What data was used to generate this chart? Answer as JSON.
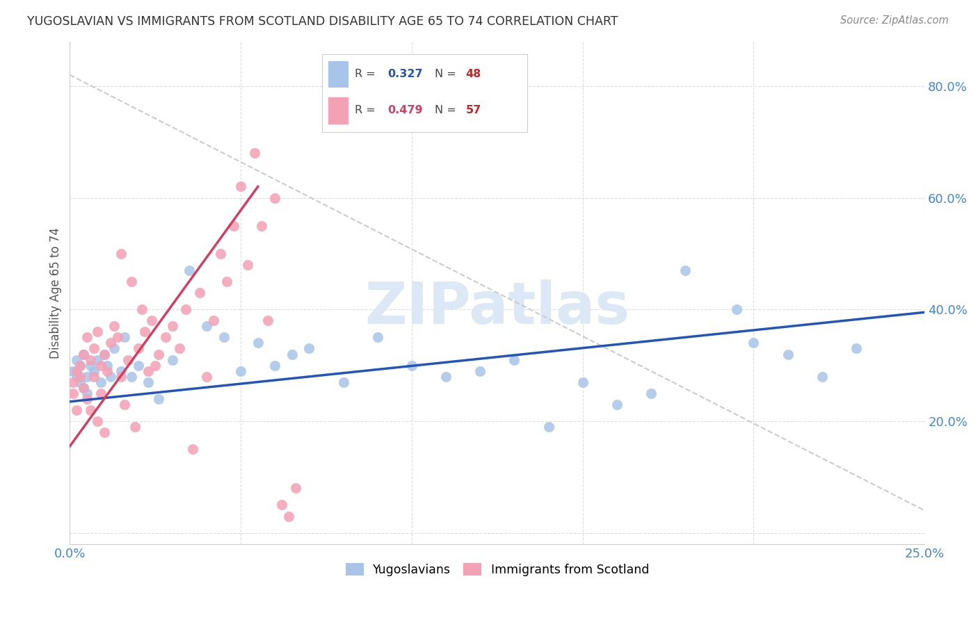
{
  "title": "YUGOSLAVIAN VS IMMIGRANTS FROM SCOTLAND DISABILITY AGE 65 TO 74 CORRELATION CHART",
  "source": "Source: ZipAtlas.com",
  "ylabel": "Disability Age 65 to 74",
  "xlim": [
    0.0,
    0.25
  ],
  "ylim": [
    -0.02,
    0.88
  ],
  "xticks": [
    0.0,
    0.05,
    0.1,
    0.15,
    0.2,
    0.25
  ],
  "xticklabels": [
    "0.0%",
    "",
    "",
    "",
    "",
    "25.0%"
  ],
  "yticks": [
    0.0,
    0.2,
    0.4,
    0.6,
    0.8
  ],
  "yticklabels": [
    "",
    "20.0%",
    "40.0%",
    "60.0%",
    "80.0%"
  ],
  "series1_label": "Yugoslavians",
  "series1_R": 0.327,
  "series1_N": 48,
  "series1_color": "#a8c4e8",
  "series1_edge_color": "#a8c4e8",
  "series1_line_color": "#2255bb",
  "series2_label": "Immigrants from Scotland",
  "series2_R": 0.479,
  "series2_N": 57,
  "series2_color": "#f4a0b5",
  "series2_edge_color": "#f4a0b5",
  "series2_line_color": "#d04060",
  "legend_R_color1": "#2255bb",
  "legend_R_color2": "#d04060",
  "legend_N_color1": "#cc2222",
  "legend_N_color2": "#cc2222",
  "background_color": "#ffffff",
  "grid_color": "#dddddd",
  "watermark_text": "ZIPatlas",
  "watermark_color": "#dce8f5",
  "ref_line_color": "#cccccc",
  "title_color": "#333333",
  "source_color": "#888888",
  "tick_color": "#4488cc",
  "ylabel_color": "#555555",
  "series1_x": [
    0.001,
    0.002,
    0.002,
    0.003,
    0.003,
    0.004,
    0.004,
    0.005,
    0.005,
    0.006,
    0.007,
    0.008,
    0.009,
    0.01,
    0.011,
    0.012,
    0.013,
    0.015,
    0.016,
    0.018,
    0.02,
    0.023,
    0.026,
    0.03,
    0.035,
    0.04,
    0.045,
    0.05,
    0.055,
    0.06,
    0.065,
    0.07,
    0.08,
    0.09,
    0.1,
    0.11,
    0.12,
    0.13,
    0.14,
    0.15,
    0.16,
    0.17,
    0.18,
    0.195,
    0.2,
    0.21,
    0.22,
    0.23
  ],
  "series1_y": [
    0.29,
    0.28,
    0.31,
    0.27,
    0.3,
    0.26,
    0.32,
    0.28,
    0.25,
    0.3,
    0.29,
    0.31,
    0.27,
    0.32,
    0.3,
    0.28,
    0.33,
    0.29,
    0.35,
    0.28,
    0.3,
    0.27,
    0.24,
    0.31,
    0.47,
    0.37,
    0.35,
    0.29,
    0.34,
    0.3,
    0.32,
    0.33,
    0.27,
    0.35,
    0.3,
    0.28,
    0.29,
    0.31,
    0.19,
    0.27,
    0.23,
    0.25,
    0.47,
    0.4,
    0.34,
    0.32,
    0.28,
    0.33
  ],
  "series2_x": [
    0.001,
    0.001,
    0.002,
    0.002,
    0.003,
    0.003,
    0.004,
    0.004,
    0.005,
    0.005,
    0.006,
    0.006,
    0.007,
    0.007,
    0.008,
    0.008,
    0.009,
    0.009,
    0.01,
    0.01,
    0.011,
    0.012,
    0.013,
    0.014,
    0.015,
    0.015,
    0.016,
    0.017,
    0.018,
    0.019,
    0.02,
    0.021,
    0.022,
    0.023,
    0.024,
    0.025,
    0.026,
    0.028,
    0.03,
    0.032,
    0.034,
    0.036,
    0.038,
    0.04,
    0.042,
    0.044,
    0.046,
    0.048,
    0.05,
    0.052,
    0.054,
    0.056,
    0.058,
    0.06,
    0.062,
    0.064,
    0.066
  ],
  "series2_y": [
    0.27,
    0.25,
    0.29,
    0.22,
    0.28,
    0.3,
    0.26,
    0.32,
    0.24,
    0.35,
    0.31,
    0.22,
    0.33,
    0.28,
    0.36,
    0.2,
    0.3,
    0.25,
    0.32,
    0.18,
    0.29,
    0.34,
    0.37,
    0.35,
    0.28,
    0.5,
    0.23,
    0.31,
    0.45,
    0.19,
    0.33,
    0.4,
    0.36,
    0.29,
    0.38,
    0.3,
    0.32,
    0.35,
    0.37,
    0.33,
    0.4,
    0.15,
    0.43,
    0.28,
    0.38,
    0.5,
    0.45,
    0.55,
    0.62,
    0.48,
    0.68,
    0.55,
    0.38,
    0.6,
    0.05,
    0.03,
    0.08
  ],
  "ref_line_x": [
    0.0,
    0.25
  ],
  "ref_line_y": [
    0.82,
    0.04
  ]
}
